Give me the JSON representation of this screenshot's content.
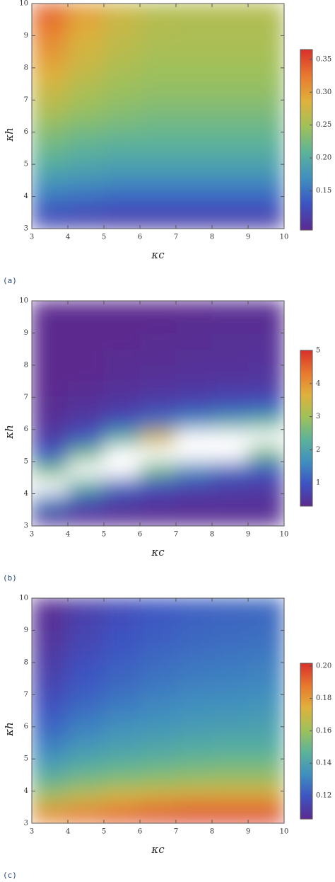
{
  "chart_data": [
    {
      "type": "heatmap",
      "label": "(a)",
      "x_label": "κc",
      "y_label": "κh",
      "xlim": [
        3,
        10
      ],
      "ylim": [
        3,
        10
      ],
      "xticks": [
        3,
        4,
        5,
        6,
        7,
        8,
        9,
        10
      ],
      "yticks": [
        3,
        4,
        5,
        6,
        7,
        8,
        9,
        10
      ],
      "zlim": [
        0.09,
        0.365
      ],
      "zticks": [
        {
          "value": 0.15,
          "label": "0.15"
        },
        {
          "value": 0.2,
          "label": "0.20"
        },
        {
          "value": 0.25,
          "label": "0.25"
        },
        {
          "value": 0.3,
          "label": "0.30"
        },
        {
          "value": 0.35,
          "label": "0.35"
        }
      ],
      "colors": [
        "#5b2a8f",
        "#3d53c2",
        "#3f8fc0",
        "#5bb39a",
        "#9fc15a",
        "#e0b13c",
        "#e8782f",
        "#d8302a"
      ],
      "z": [
        [
          0.12,
          0.115,
          0.11,
          0.11,
          0.11,
          0.11,
          0.11
        ],
        [
          0.14,
          0.135,
          0.13,
          0.13,
          0.13,
          0.13,
          0.13
        ],
        [
          0.165,
          0.16,
          0.155,
          0.155,
          0.155,
          0.155,
          0.155
        ],
        [
          0.19,
          0.185,
          0.18,
          0.18,
          0.18,
          0.18,
          0.18
        ],
        [
          0.21,
          0.2,
          0.195,
          0.195,
          0.195,
          0.195,
          0.195
        ],
        [
          0.225,
          0.215,
          0.21,
          0.21,
          0.21,
          0.21,
          0.21
        ],
        [
          0.24,
          0.23,
          0.225,
          0.22,
          0.22,
          0.22,
          0.22
        ],
        [
          0.26,
          0.245,
          0.235,
          0.23,
          0.23,
          0.23,
          0.23
        ],
        [
          0.27,
          0.255,
          0.245,
          0.24,
          0.24,
          0.24,
          0.24
        ],
        [
          0.285,
          0.265,
          0.25,
          0.245,
          0.245,
          0.245,
          0.245
        ],
        [
          0.3,
          0.275,
          0.26,
          0.25,
          0.25,
          0.25,
          0.25
        ],
        [
          0.31,
          0.28,
          0.265,
          0.255,
          0.255,
          0.255,
          0.255
        ],
        [
          0.325,
          0.29,
          0.27,
          0.26,
          0.255,
          0.255,
          0.255
        ],
        [
          0.335,
          0.3,
          0.275,
          0.26,
          0.26,
          0.26,
          0.26
        ]
      ]
    },
    {
      "type": "heatmap",
      "label": "(b)",
      "x_label": "κc",
      "y_label": "κh",
      "xlim": [
        3,
        10
      ],
      "ylim": [
        3,
        10
      ],
      "xticks": [
        3,
        4,
        5,
        6,
        7,
        8,
        9,
        10
      ],
      "yticks": [
        3,
        4,
        5,
        6,
        7,
        8,
        9,
        10
      ],
      "zlim": [
        0.3,
        5
      ],
      "zticks": [
        1,
        2,
        3,
        4,
        5
      ],
      "colors": [
        "#5b2a8f",
        "#3d53c2",
        "#3f8fc0",
        "#5bb39a",
        "#9fc15a",
        "#e0b13c",
        "#e8782f",
        "#d8302a"
      ],
      "z": [
        [
          0.5,
          0.4,
          0.35,
          0.35,
          0.35,
          0.35,
          0.35
        ],
        [
          1.5,
          0.8,
          0.6,
          0.5,
          0.45,
          0.45,
          0.45
        ],
        [
          null,
          2.2,
          1.2,
          0.9,
          0.75,
          0.65,
          0.6
        ],
        [
          2.5,
          null,
          null,
          2.5,
          1.6,
          1.2,
          1.0
        ],
        [
          1.0,
          2.5,
          null,
          null,
          null,
          null,
          2.5
        ],
        [
          0.6,
          1.0,
          2.2,
          3.5,
          null,
          null,
          null
        ],
        [
          0.4,
          0.6,
          0.9,
          1.3,
          1.6,
          2.0,
          2.3
        ],
        [
          0.35,
          0.45,
          0.55,
          0.7,
          0.8,
          0.9,
          1.0
        ],
        [
          0.3,
          0.35,
          0.45,
          0.5,
          0.55,
          0.6,
          0.6
        ],
        [
          0.3,
          0.3,
          0.35,
          0.4,
          0.45,
          0.45,
          0.5
        ],
        [
          0.3,
          0.3,
          0.35,
          0.35,
          0.4,
          0.4,
          0.45
        ],
        [
          0.3,
          0.3,
          0.3,
          0.35,
          0.35,
          0.4,
          0.4
        ],
        [
          0.3,
          0.3,
          0.3,
          0.3,
          0.35,
          0.35,
          0.35
        ],
        [
          0.3,
          0.3,
          0.3,
          0.3,
          0.3,
          0.35,
          0.35
        ]
      ]
    },
    {
      "type": "heatmap",
      "label": "(c)",
      "x_label": "κc",
      "y_label": "κh",
      "xlim": [
        3,
        10
      ],
      "ylim": [
        3,
        10
      ],
      "xticks": [
        3,
        4,
        5,
        6,
        7,
        8,
        9,
        10
      ],
      "yticks": [
        3,
        4,
        5,
        6,
        7,
        8,
        9,
        10
      ],
      "zlim": [
        0.1056,
        0.2017
      ],
      "zticks": [
        {
          "value": 0.12,
          "label": "0.12"
        },
        {
          "value": 0.14,
          "label": "0.14"
        },
        {
          "value": 0.16,
          "label": "0.16"
        },
        {
          "value": 0.18,
          "label": "0.18"
        },
        {
          "value": 0.2,
          "label": "0.20"
        }
      ],
      "colors": [
        "#5b2a8f",
        "#3d53c2",
        "#3f8fc0",
        "#5bb39a",
        "#9fc15a",
        "#e0b13c",
        "#e8782f",
        "#d8302a"
      ],
      "z": [
        [
          0.185,
          0.19,
          0.195,
          0.198,
          0.2,
          0.2,
          0.2
        ],
        [
          0.165,
          0.17,
          0.175,
          0.178,
          0.18,
          0.18,
          0.18
        ],
        [
          0.15,
          0.155,
          0.158,
          0.16,
          0.162,
          0.163,
          0.163
        ],
        [
          0.14,
          0.145,
          0.148,
          0.15,
          0.152,
          0.153,
          0.153
        ],
        [
          0.132,
          0.138,
          0.141,
          0.143,
          0.145,
          0.146,
          0.146
        ],
        [
          0.126,
          0.132,
          0.136,
          0.138,
          0.14,
          0.141,
          0.141
        ],
        [
          0.122,
          0.128,
          0.132,
          0.134,
          0.136,
          0.137,
          0.138
        ],
        [
          0.118,
          0.124,
          0.128,
          0.131,
          0.133,
          0.134,
          0.135
        ],
        [
          0.115,
          0.121,
          0.125,
          0.128,
          0.13,
          0.131,
          0.132
        ],
        [
          0.113,
          0.119,
          0.123,
          0.126,
          0.128,
          0.129,
          0.13
        ],
        [
          0.111,
          0.117,
          0.121,
          0.124,
          0.126,
          0.127,
          0.128
        ],
        [
          0.109,
          0.115,
          0.119,
          0.122,
          0.124,
          0.125,
          0.126
        ],
        [
          0.108,
          0.114,
          0.118,
          0.121,
          0.123,
          0.124,
          0.125
        ],
        [
          0.107,
          0.113,
          0.117,
          0.12,
          0.122,
          0.123,
          0.124
        ]
      ]
    }
  ]
}
